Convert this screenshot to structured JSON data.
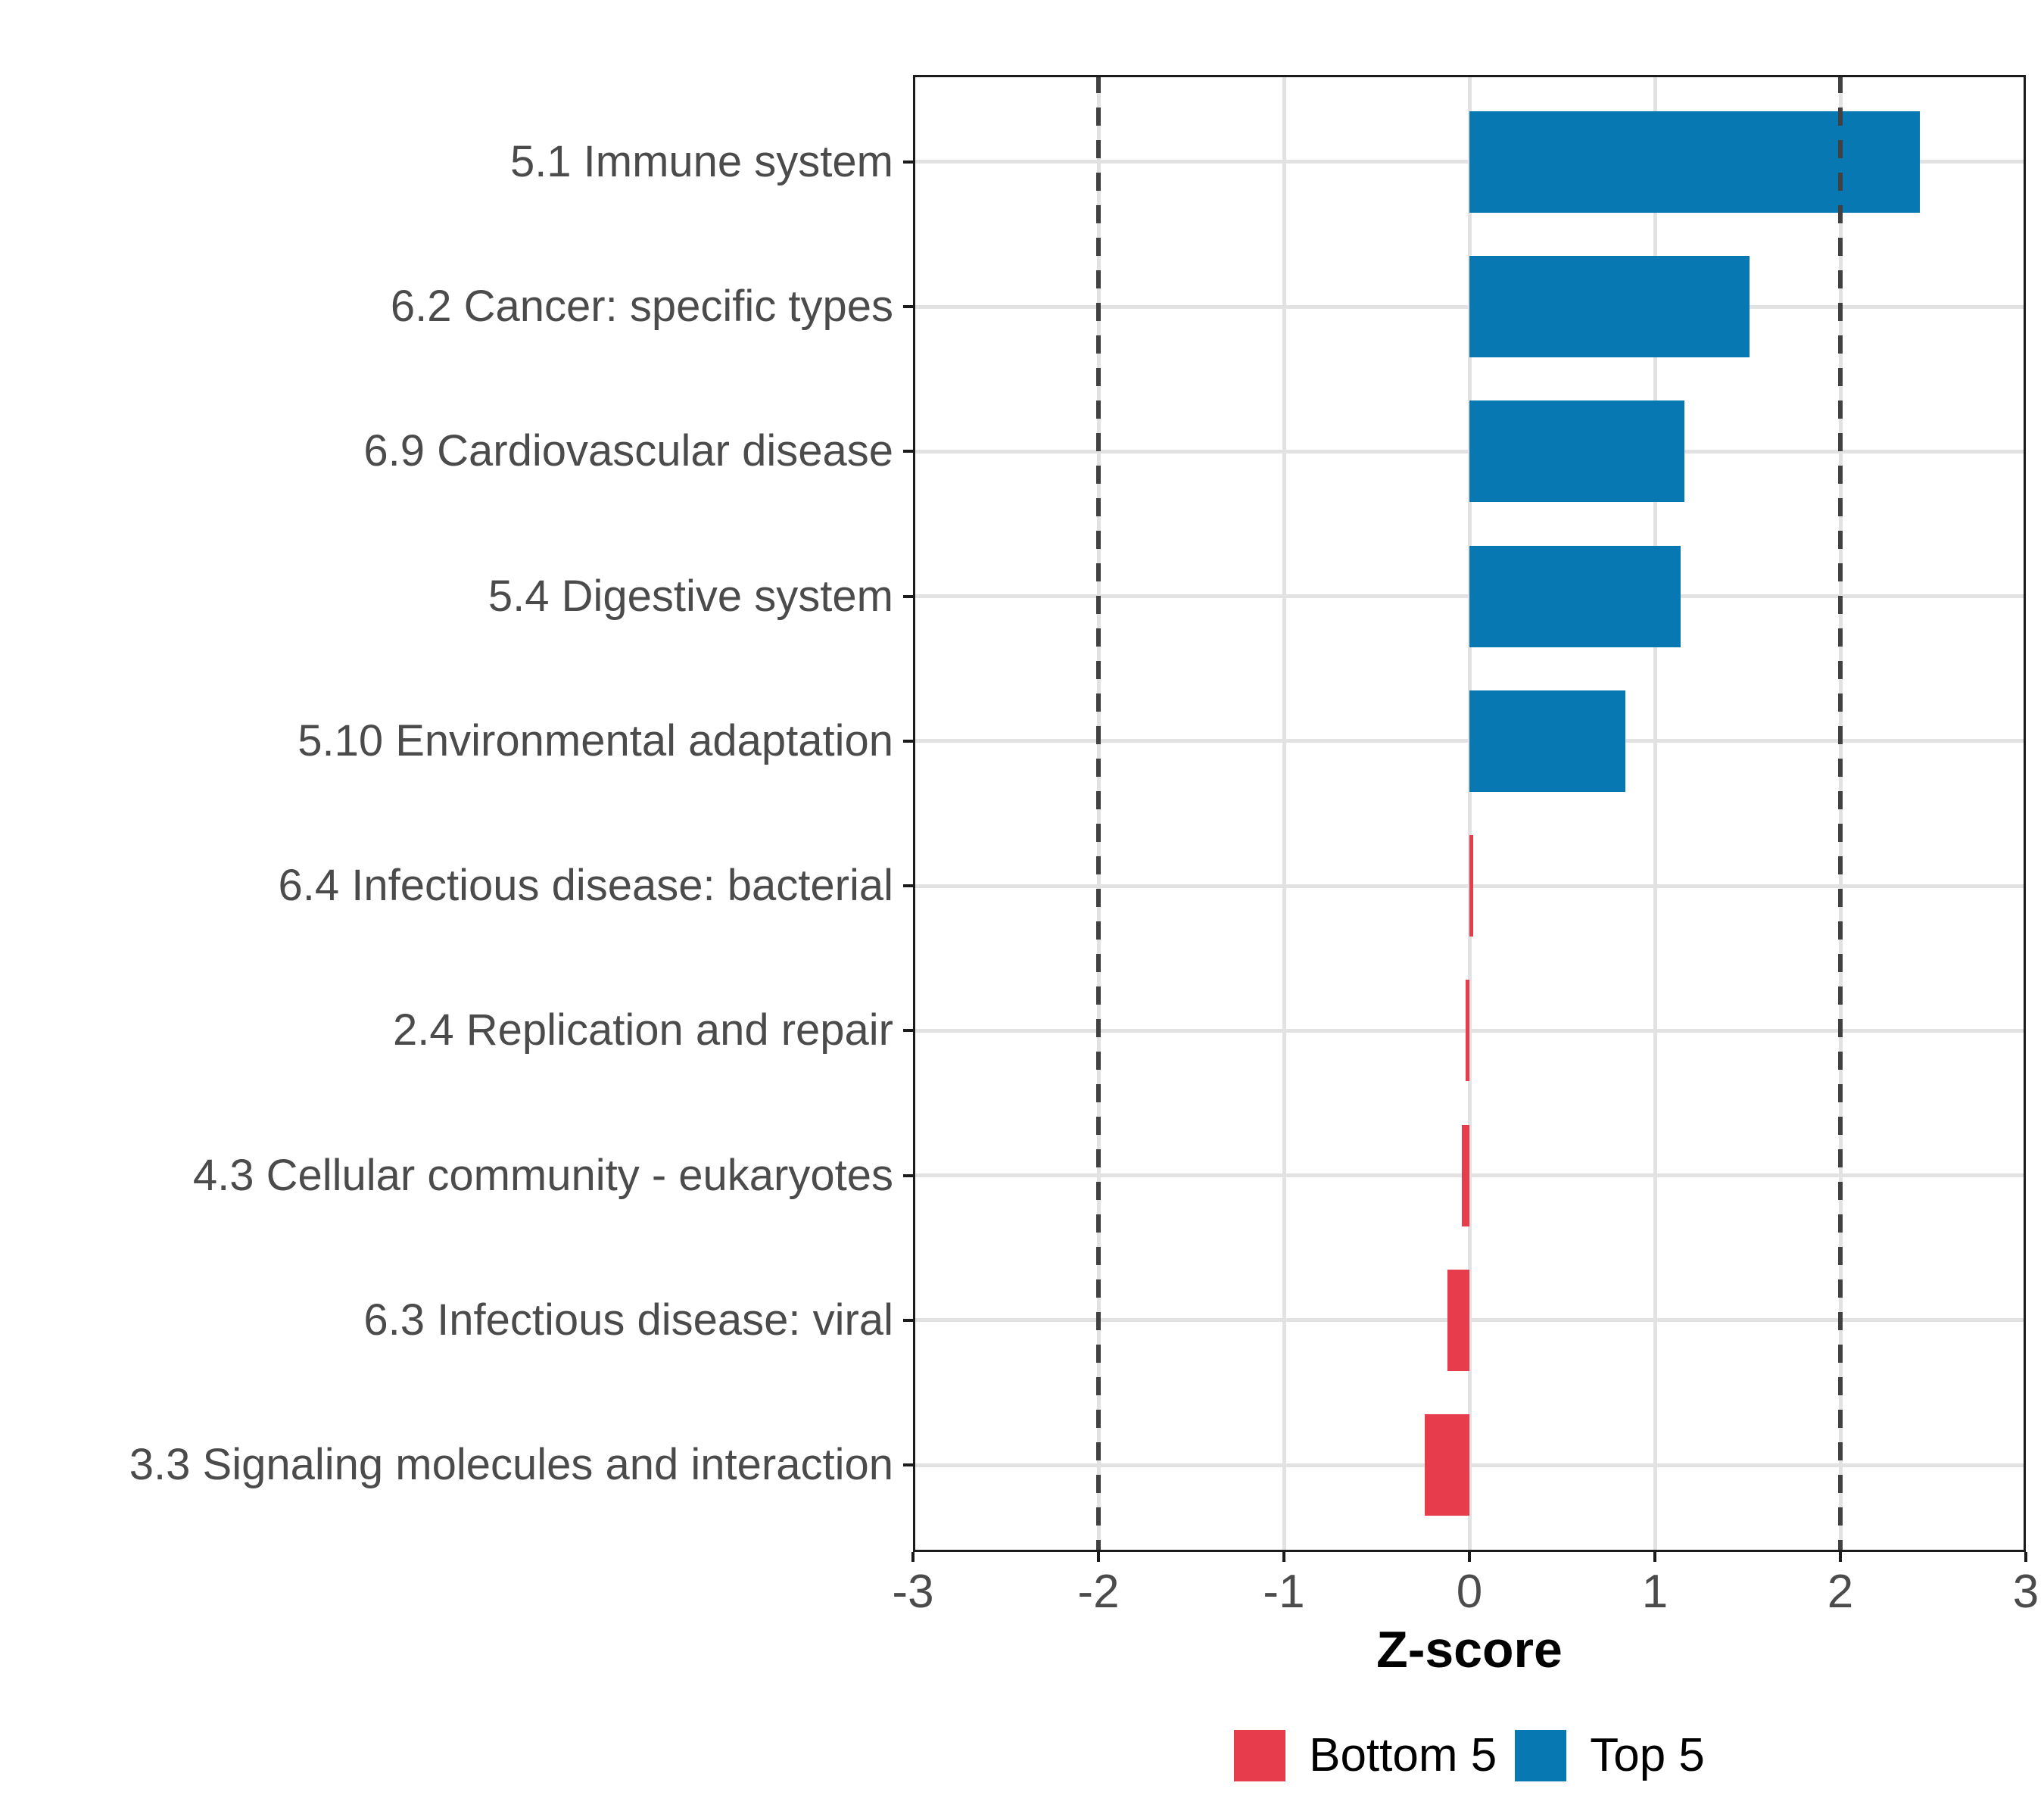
{
  "chart_data": {
    "type": "bar",
    "orientation": "horizontal",
    "title": "",
    "xlabel": "Z-score",
    "ylabel": "",
    "xlim": [
      -3,
      3
    ],
    "x_ticks": [
      -3,
      -2,
      -1,
      0,
      1,
      2,
      3
    ],
    "reference_lines": [
      -2,
      2
    ],
    "grid": "major",
    "legend_position": "bottom",
    "categories": [
      "5.1 Immune system",
      "6.2 Cancer: specific types",
      "6.9 Cardiovascular disease",
      "5.4 Digestive system",
      "5.10 Environmental adaptation",
      "6.4 Infectious disease: bacterial",
      "2.4 Replication and repair",
      "4.3 Cellular community - eukaryotes",
      "6.3 Infectious disease: viral",
      "3.3 Signaling molecules and interaction"
    ],
    "values": [
      2.43,
      1.51,
      1.16,
      1.14,
      0.84,
      0.02,
      -0.02,
      -0.04,
      -0.12,
      -0.24
    ],
    "groups": [
      "Top 5",
      "Top 5",
      "Top 5",
      "Top 5",
      "Top 5",
      "Bottom 5",
      "Bottom 5",
      "Bottom 5",
      "Bottom 5",
      "Bottom 5"
    ],
    "legend": [
      {
        "label": "Bottom 5",
        "color": "#E63C4B"
      },
      {
        "label": "Top 5",
        "color": "#0878B3"
      }
    ]
  },
  "colors": {
    "background": "#FFFFFF",
    "panel_border": "#1B1B1B",
    "gridline": "#E2E2E2",
    "reference_line": "#414141",
    "axis_text": "#4B4B4B",
    "axis_title_text": "#000000",
    "bottom5": "#E63C4B",
    "top5": "#0878B3"
  }
}
